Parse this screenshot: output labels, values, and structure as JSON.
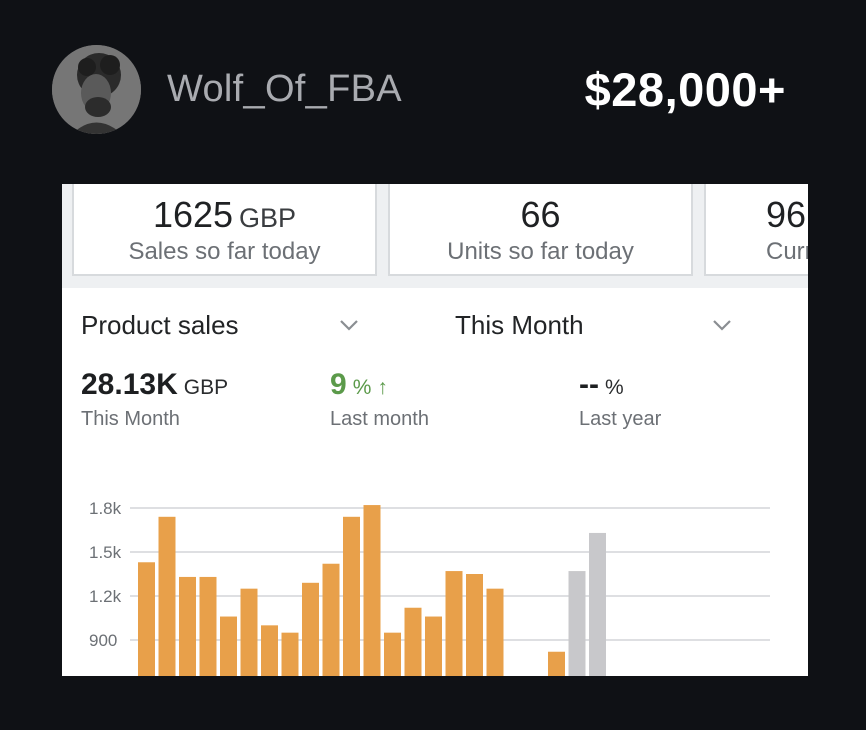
{
  "header": {
    "username": "Wolf_Of_FBA",
    "amount": "$28,000+"
  },
  "stats": [
    {
      "value": "1625",
      "unit": "GBP",
      "label": "Sales so far today"
    },
    {
      "value": "66",
      "unit": "",
      "label": "Units so far today"
    },
    {
      "value": "96",
      "unit": "",
      "label": "Curr"
    }
  ],
  "selectors": {
    "metric": "Product sales",
    "period": "This Month"
  },
  "metrics": [
    {
      "value": "28.13K",
      "unit": "GBP",
      "label": "This Month"
    },
    {
      "value": "9",
      "unit": "%",
      "arrow": "↑",
      "label": "Last month"
    },
    {
      "value": "--",
      "unit": "%",
      "label": "Last year"
    }
  ],
  "colors": {
    "current": "#e8a04a",
    "previous": "#c8c8cb",
    "positive": "#5b9a4a"
  },
  "chart_data": {
    "type": "bar",
    "ticks": [
      "1.8k",
      "1.5k",
      "1.2k",
      "900"
    ],
    "tick_values": [
      1800,
      1500,
      1200,
      900
    ],
    "series": [
      {
        "values": [
          1430,
          1740,
          1330,
          1330,
          1060,
          1250,
          1000,
          950,
          1290,
          1420,
          1740,
          1820,
          950,
          1120,
          1060,
          1370,
          1350,
          1250,
          null,
          null,
          820
        ]
      },
      {
        "values": [
          null,
          null,
          null,
          null,
          null,
          null,
          null,
          null,
          null,
          null,
          null,
          null,
          null,
          null,
          null,
          null,
          null,
          null,
          null,
          null,
          null,
          1370,
          1630
        ]
      }
    ],
    "grid": true
  }
}
